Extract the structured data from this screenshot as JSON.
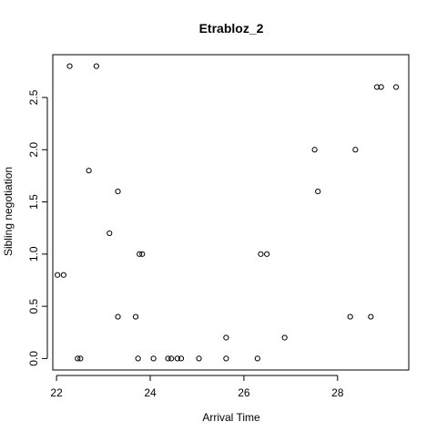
{
  "chart_data": {
    "type": "scatter",
    "title": "Etrabloz_2",
    "xlabel": "Arrival Time",
    "ylabel": "Sibling negotiation",
    "xlim": [
      21.92,
      29.52
    ],
    "ylim": [
      -0.11,
      2.91
    ],
    "xticks": [
      22,
      24,
      26,
      28
    ],
    "xtick_labels": [
      "22",
      "24",
      "26",
      "28"
    ],
    "yticks": [
      0.0,
      0.5,
      1.0,
      1.5,
      2.0,
      2.5
    ],
    "ytick_labels": [
      "0.0",
      "0.5",
      "1.0",
      "1.5",
      "2.0",
      "2.5"
    ],
    "grid": false,
    "legend": false,
    "marker": "open-circle",
    "colors": {
      "points": "#000000",
      "axes": "#000000",
      "background": "#ffffff"
    },
    "points": [
      {
        "x": 22.02,
        "y": 0.8
      },
      {
        "x": 22.15,
        "y": 0.8
      },
      {
        "x": 22.28,
        "y": 2.8
      },
      {
        "x": 22.45,
        "y": 0.0
      },
      {
        "x": 22.51,
        "y": 0.0
      },
      {
        "x": 22.69,
        "y": 1.8
      },
      {
        "x": 22.85,
        "y": 2.8
      },
      {
        "x": 23.13,
        "y": 1.2
      },
      {
        "x": 23.31,
        "y": 1.6
      },
      {
        "x": 23.31,
        "y": 0.4
      },
      {
        "x": 23.69,
        "y": 0.4
      },
      {
        "x": 23.74,
        "y": 0.0
      },
      {
        "x": 23.77,
        "y": 1.0
      },
      {
        "x": 23.83,
        "y": 1.0
      },
      {
        "x": 24.07,
        "y": 0.0
      },
      {
        "x": 24.38,
        "y": 0.0
      },
      {
        "x": 24.45,
        "y": 0.0
      },
      {
        "x": 24.58,
        "y": 0.0
      },
      {
        "x": 24.66,
        "y": 0.0
      },
      {
        "x": 25.04,
        "y": 0.0
      },
      {
        "x": 25.62,
        "y": 0.2
      },
      {
        "x": 25.62,
        "y": 0.0
      },
      {
        "x": 26.29,
        "y": 0.0
      },
      {
        "x": 26.36,
        "y": 1.0
      },
      {
        "x": 26.49,
        "y": 1.0
      },
      {
        "x": 26.87,
        "y": 0.2
      },
      {
        "x": 27.51,
        "y": 2.0
      },
      {
        "x": 27.58,
        "y": 1.6
      },
      {
        "x": 28.27,
        "y": 0.4
      },
      {
        "x": 28.38,
        "y": 2.0
      },
      {
        "x": 28.71,
        "y": 0.4
      },
      {
        "x": 28.84,
        "y": 2.6
      },
      {
        "x": 28.93,
        "y": 2.6
      },
      {
        "x": 29.25,
        "y": 2.6
      }
    ]
  }
}
